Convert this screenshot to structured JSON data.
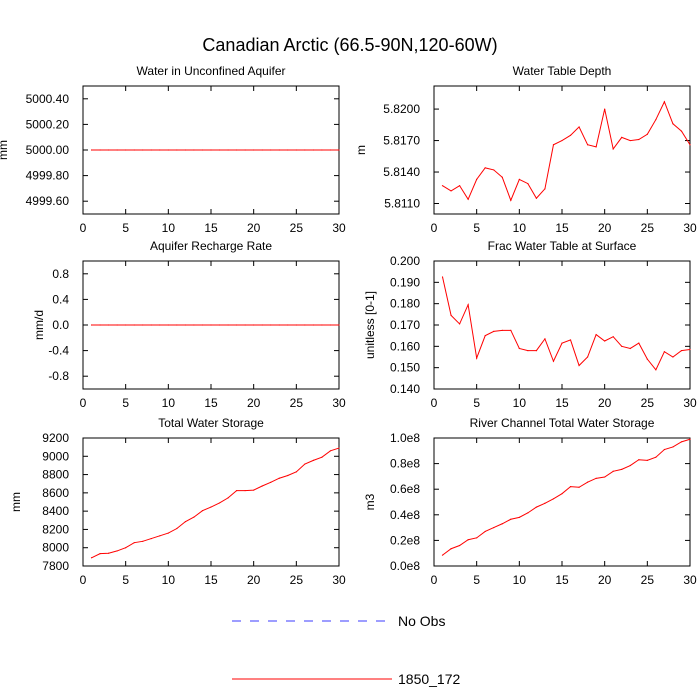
{
  "figure": {
    "title": "Canadian Arctic (66.5-90N,120-60W)",
    "legend": [
      {
        "label": "No Obs",
        "color": "#3b3bff",
        "style": "dashed"
      },
      {
        "label": "1850_172",
        "color": "#ff0000",
        "style": "solid"
      }
    ]
  },
  "chart_data": [
    {
      "type": "line",
      "title": "Water in Unconfined Aquifer",
      "ylabel": "mm",
      "xlim": [
        0,
        30
      ],
      "ylim": [
        4999.5,
        5000.5
      ],
      "xticks": [
        0,
        5,
        10,
        15,
        20,
        25,
        30
      ],
      "yticks": [
        4999.6,
        4999.8,
        5000.0,
        5000.2,
        5000.4
      ],
      "ytick_labels": [
        "4999.60",
        "4999.80",
        "5000.00",
        "5000.20",
        "5000.40"
      ],
      "series": [
        {
          "name": "1850_172",
          "color": "#ff0000",
          "x": [
            1,
            2,
            3,
            4,
            5,
            6,
            7,
            8,
            9,
            10,
            11,
            12,
            13,
            14,
            15,
            16,
            17,
            18,
            19,
            20,
            21,
            22,
            23,
            24,
            25,
            26,
            27,
            28,
            29,
            30
          ],
          "values": [
            5000,
            5000,
            5000,
            5000,
            5000,
            5000,
            5000,
            5000,
            5000,
            5000,
            5000,
            5000,
            5000,
            5000,
            5000,
            5000,
            5000,
            5000,
            5000,
            5000,
            5000,
            5000,
            5000,
            5000,
            5000,
            5000,
            5000,
            5000,
            5000,
            5000
          ]
        }
      ]
    },
    {
      "type": "line",
      "title": "Water Table Depth",
      "ylabel": "m",
      "xlim": [
        0,
        30
      ],
      "ylim": [
        5.81,
        5.8222
      ],
      "xticks": [
        0,
        5,
        10,
        15,
        20,
        25,
        30
      ],
      "yticks": [
        5.811,
        5.814,
        5.817,
        5.82
      ],
      "ytick_labels": [
        "5.8110",
        "5.8140",
        "5.8170",
        "5.8200"
      ],
      "series": [
        {
          "name": "1850_172",
          "color": "#ff0000",
          "x": [
            1,
            2,
            3,
            4,
            5,
            6,
            7,
            8,
            9,
            10,
            11,
            12,
            13,
            14,
            15,
            16,
            17,
            18,
            19,
            20,
            21,
            22,
            23,
            24,
            25,
            26,
            27,
            28,
            29,
            30
          ],
          "values": [
            5.8127,
            5.8122,
            5.8127,
            5.8114,
            5.8133,
            5.8144,
            5.8142,
            5.8135,
            5.8113,
            5.8133,
            5.8129,
            5.8115,
            5.8124,
            5.8166,
            5.817,
            5.8175,
            5.8183,
            5.8166,
            5.8164,
            5.82,
            5.8162,
            5.8173,
            5.817,
            5.8171,
            5.8176,
            5.819,
            5.8207,
            5.8186,
            5.8179,
            5.8166
          ]
        }
      ]
    },
    {
      "type": "line",
      "title": "Aquifer Recharge Rate",
      "ylabel": "mm/d",
      "xlim": [
        0,
        30
      ],
      "ylim": [
        -1,
        1
      ],
      "xticks": [
        0,
        5,
        10,
        15,
        20,
        25,
        30
      ],
      "yticks": [
        -0.8,
        -0.4,
        0.0,
        0.4,
        0.8
      ],
      "ytick_labels": [
        "-0.8",
        "-0.4",
        "0.0",
        "0.4",
        "0.8"
      ],
      "series": [
        {
          "name": "1850_172",
          "color": "#ff0000",
          "x": [
            1,
            2,
            3,
            4,
            5,
            6,
            7,
            8,
            9,
            10,
            11,
            12,
            13,
            14,
            15,
            16,
            17,
            18,
            19,
            20,
            21,
            22,
            23,
            24,
            25,
            26,
            27,
            28,
            29,
            30
          ],
          "values": [
            0,
            0,
            0,
            0,
            0,
            0,
            0,
            0,
            0,
            0,
            0,
            0,
            0,
            0,
            0,
            0,
            0,
            0,
            0,
            0,
            0,
            0,
            0,
            0,
            0,
            0,
            0,
            0,
            0,
            0
          ]
        }
      ]
    },
    {
      "type": "line",
      "title": "Frac Water Table at Surface",
      "ylabel": "unitless [0-1]",
      "xlim": [
        0,
        30
      ],
      "ylim": [
        0.14,
        0.2
      ],
      "xticks": [
        0,
        5,
        10,
        15,
        20,
        25,
        30
      ],
      "yticks": [
        0.14,
        0.15,
        0.16,
        0.17,
        0.18,
        0.19,
        0.2
      ],
      "ytick_labels": [
        "0.140",
        "0.150",
        "0.160",
        "0.170",
        "0.180",
        "0.190",
        "0.200"
      ],
      "series": [
        {
          "name": "1850_172",
          "color": "#ff0000",
          "x": [
            1,
            2,
            3,
            4,
            5,
            6,
            7,
            8,
            9,
            10,
            11,
            12,
            13,
            14,
            15,
            16,
            17,
            18,
            19,
            20,
            21,
            22,
            23,
            24,
            25,
            26,
            27,
            28,
            29,
            30
          ],
          "values": [
            0.1925,
            0.1745,
            0.1705,
            0.1795,
            0.1545,
            0.165,
            0.167,
            0.1675,
            0.1675,
            0.159,
            0.158,
            0.158,
            0.1635,
            0.153,
            0.1615,
            0.163,
            0.151,
            0.155,
            0.1655,
            0.1625,
            0.1645,
            0.16,
            0.159,
            0.1615,
            0.154,
            0.149,
            0.1575,
            0.155,
            0.158,
            0.1585
          ]
        }
      ]
    },
    {
      "type": "line",
      "title": "Total Water Storage",
      "ylabel": "mm",
      "xlim": [
        0,
        30
      ],
      "ylim": [
        7800,
        9200
      ],
      "xticks": [
        0,
        5,
        10,
        15,
        20,
        25,
        30
      ],
      "yticks": [
        7800,
        8000,
        8200,
        8400,
        8600,
        8800,
        9000,
        9200
      ],
      "ytick_labels": [
        "7800",
        "8000",
        "8200",
        "8400",
        "8600",
        "8800",
        "9000",
        "9200"
      ],
      "series": [
        {
          "name": "1850_172",
          "color": "#ff0000",
          "x": [
            1,
            2,
            3,
            4,
            5,
            6,
            7,
            8,
            9,
            10,
            11,
            12,
            13,
            14,
            15,
            16,
            17,
            18,
            19,
            20,
            21,
            22,
            23,
            24,
            25,
            26,
            27,
            28,
            29,
            30
          ],
          "values": [
            7890,
            7935,
            7940,
            7965,
            8000,
            8055,
            8070,
            8100,
            8130,
            8160,
            8210,
            8285,
            8335,
            8405,
            8445,
            8490,
            8545,
            8625,
            8625,
            8630,
            8675,
            8715,
            8760,
            8790,
            8830,
            8915,
            8955,
            8990,
            9060,
            9090
          ]
        }
      ]
    },
    {
      "type": "line",
      "title": "River Channel Total Water Storage",
      "ylabel": "m3",
      "xlim": [
        0,
        30
      ],
      "ylim": [
        0,
        100000000
      ],
      "xticks": [
        0,
        5,
        10,
        15,
        20,
        25,
        30
      ],
      "yticks": [
        0,
        20000000,
        40000000,
        60000000,
        80000000,
        100000000
      ],
      "ytick_labels": [
        "0.0e8",
        "0.2e8",
        "0.4e8",
        "0.6e8",
        "0.8e8",
        "1.0e8"
      ],
      "series": [
        {
          "name": "1850_172",
          "color": "#ff0000",
          "x": [
            1,
            2,
            3,
            4,
            5,
            6,
            7,
            8,
            9,
            10,
            11,
            12,
            13,
            14,
            15,
            16,
            17,
            18,
            19,
            20,
            21,
            22,
            23,
            24,
            25,
            26,
            27,
            28,
            29,
            30
          ],
          "values": [
            8500000,
            13500000,
            16000000,
            20500000,
            22000000,
            27000000,
            30000000,
            33000000,
            36500000,
            38000000,
            41500000,
            46000000,
            49000000,
            52500000,
            56500000,
            62000000,
            61500000,
            65500000,
            68500000,
            69500000,
            74000000,
            75500000,
            78500000,
            83000000,
            82500000,
            85000000,
            91000000,
            93000000,
            97000000,
            99000000
          ]
        }
      ]
    }
  ]
}
